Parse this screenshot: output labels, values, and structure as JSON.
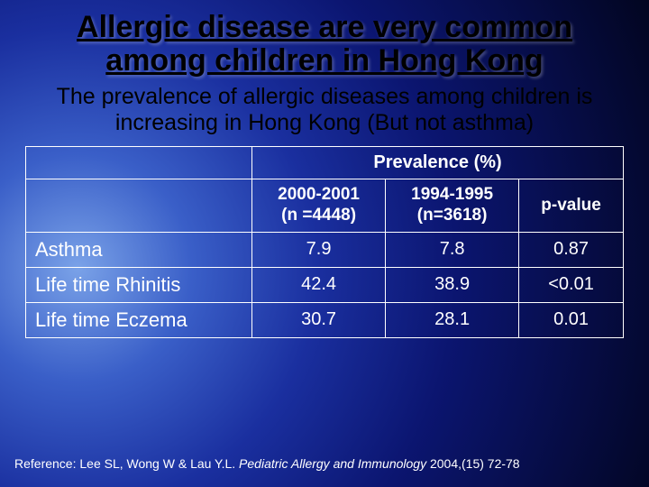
{
  "title": "Allergic disease are very common among children in Hong Kong",
  "subtitle": "The prevalence of allergic diseases among children is increasing in Hong Kong (But not asthma)",
  "table": {
    "spanner": "Prevalence (%)",
    "columns": {
      "c1_line1": "2000-2001",
      "c1_line2": "(n =4448)",
      "c2_line1": "1994-1995",
      "c2_line2": "(n=3618)",
      "c3": "p-value"
    },
    "rows": [
      {
        "label": "Asthma",
        "c1": "7.9",
        "c2": "7.8",
        "c3": "0.87"
      },
      {
        "label": "Life time Rhinitis",
        "c1": "42.4",
        "c2": "38.9",
        "c3": "<0.01"
      },
      {
        "label": "Life time Eczema",
        "c1": "30.7",
        "c2": "28.1",
        "c3": "0.01"
      }
    ]
  },
  "reference": {
    "prefix": "Reference: Lee SL, Wong W & Lau Y.L. ",
    "ital": "Pediatric Allergy and Immunology ",
    "suffix": "2004,(15) 72-78"
  },
  "colors": {
    "text_dark": "#000000",
    "text_light": "#ffffff",
    "border": "#ffffff"
  }
}
